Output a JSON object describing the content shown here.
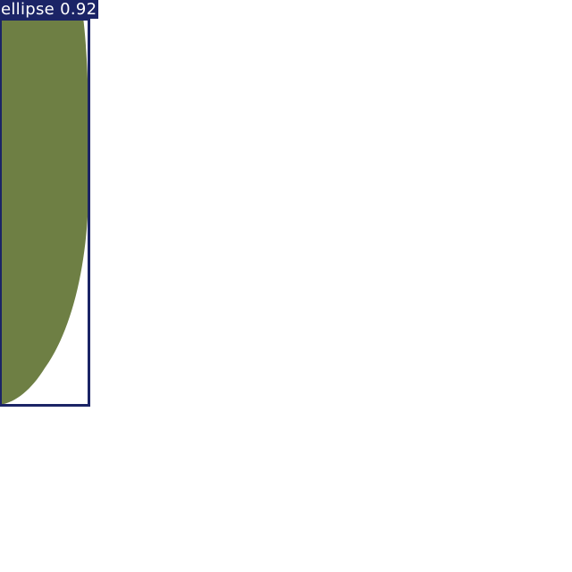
{
  "detection": {
    "label": "ellipse 0.92",
    "class": "ellipse",
    "confidence": 0.92,
    "shape_color": "#6e7f44",
    "box_color": "#1b2466",
    "label_text_color": "#ffffff"
  }
}
